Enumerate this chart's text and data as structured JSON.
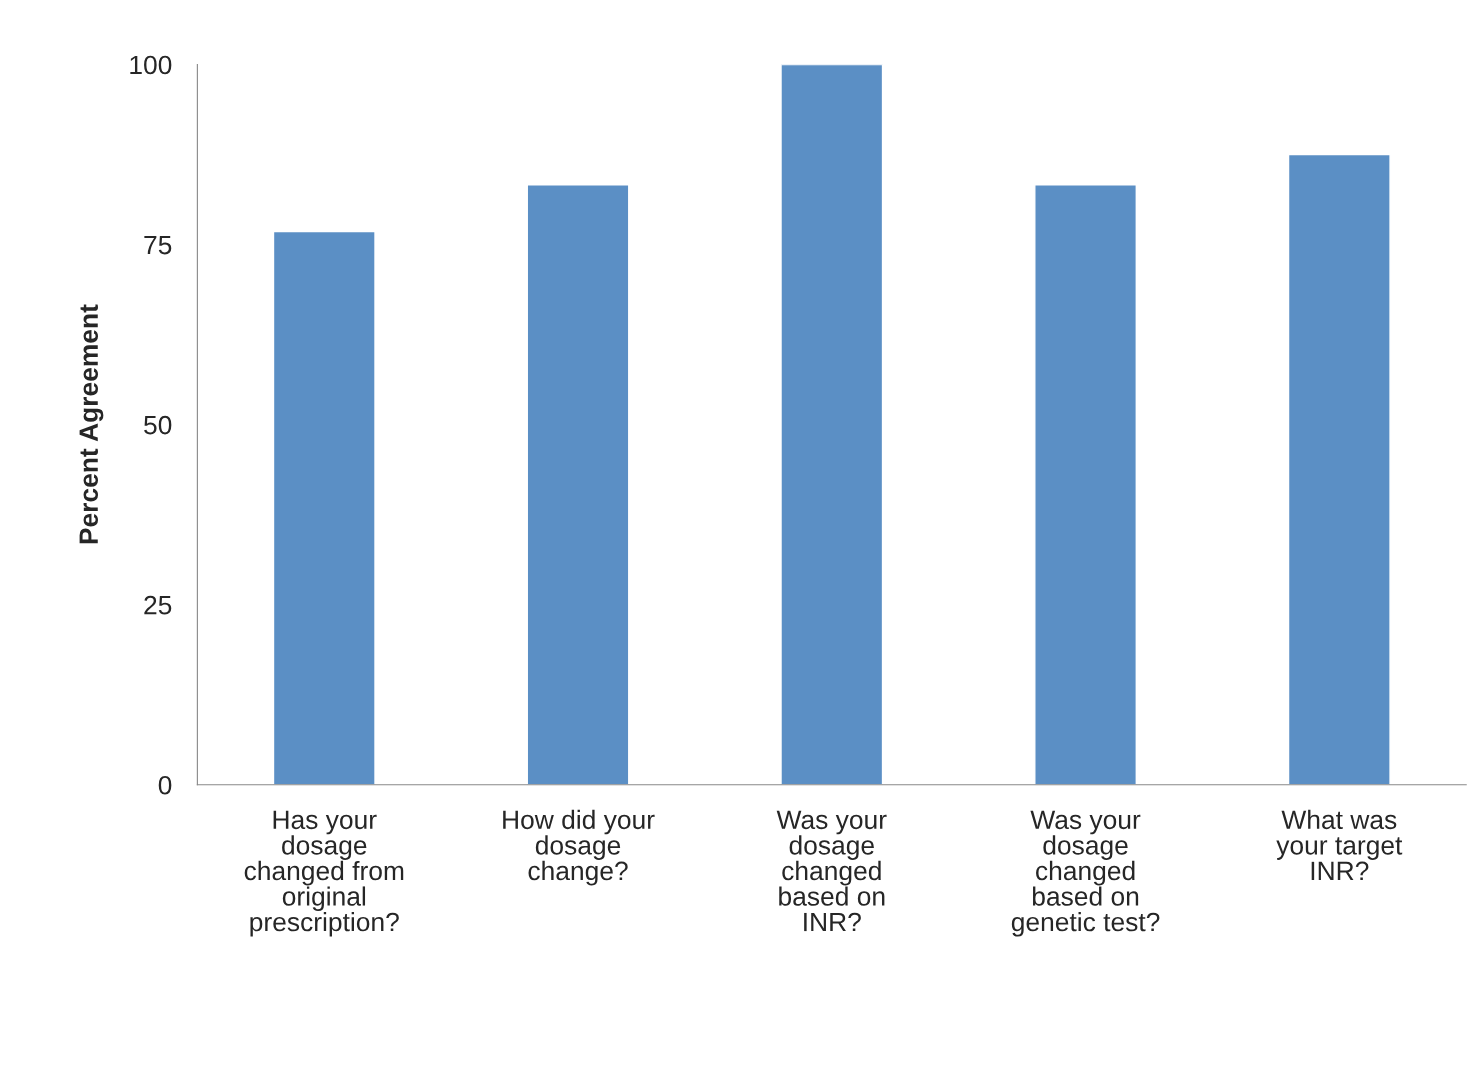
{
  "chart_data": {
    "type": "bar",
    "categories": [
      "Has your\ndosage\nchanged from\noriginal\nprescription?",
      "How did your\ndosage\nchange?",
      "Was your\ndosage\nchanged\nbased on\nINR?",
      "Was your\ndosage\nchanged\nbased on\ngenetic test?",
      "What was\nyour target\nINR?"
    ],
    "values": [
      76.8,
      83.3,
      100,
      83.3,
      87.5
    ],
    "color": "#5b8fc5",
    "ylabel": "Percent Agreement",
    "ylim": [
      0,
      100
    ],
    "yticks": [
      0,
      25,
      50,
      75,
      100
    ],
    "grid": false
  }
}
